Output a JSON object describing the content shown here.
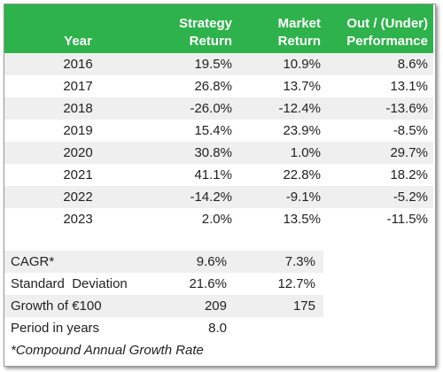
{
  "header": {
    "columns": [
      [
        "Year"
      ],
      [
        "Strategy",
        "Return"
      ],
      [
        "Market",
        "Return"
      ],
      [
        "Out / (Under)",
        "Performance"
      ]
    ]
  },
  "rows": [
    [
      "2016",
      "19.5%",
      "10.9%",
      "8.6%"
    ],
    [
      "2017",
      "26.8%",
      "13.7%",
      "13.1%"
    ],
    [
      "2018",
      "-26.0%",
      "-12.4%",
      "-13.6%"
    ],
    [
      "2019",
      "15.4%",
      "23.9%",
      "-8.5%"
    ],
    [
      "2020",
      "30.8%",
      "1.0%",
      "29.7%"
    ],
    [
      "2021",
      "41.1%",
      "22.8%",
      "18.2%"
    ],
    [
      "2022",
      "-14.2%",
      "-9.1%",
      "-5.2%"
    ],
    [
      "2023",
      "2.0%",
      "13.5%",
      "-11.5%"
    ]
  ],
  "summary": [
    [
      "CAGR*",
      "9.6%",
      "7.3%"
    ],
    [
      "Standard  Deviation",
      "21.6%",
      "12.7%"
    ],
    [
      "Growth of €100",
      "209",
      "175"
    ],
    [
      "Period in years",
      "8.0"
    ]
  ],
  "footnote": "*Compound Annual Growth Rate"
}
